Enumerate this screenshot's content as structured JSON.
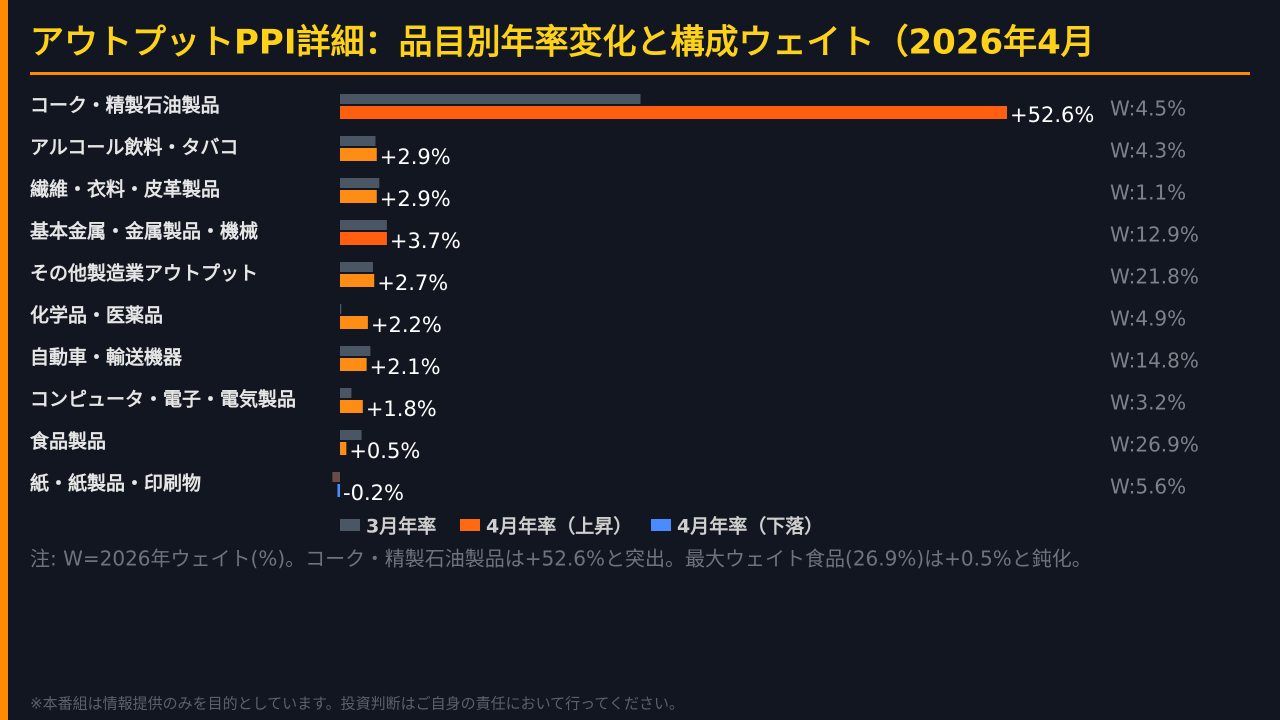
{
  "chart_data": {
    "type": "hbar",
    "title": "アウトプットPPI詳細：品目別年率変化と構成ウェイト（2026年4月",
    "categories": [
      "コーク・精製石油製品",
      "アルコール飲料・タバコ",
      "繊維・衣料・皮革製品",
      "基本金属・金属製品・機械",
      "その他製造業アウトプット",
      "化学品・医薬品",
      "自動車・輸送機器",
      "コンピュータ・電子・電気製品",
      "食品製品",
      "紙・紙製品・印刷物"
    ],
    "series": [
      {
        "name": "3月年率",
        "color": "#4a5663",
        "negative_color": "#6b4a48",
        "values": [
          23.7,
          2.8,
          3.1,
          3.7,
          2.6,
          0.1,
          2.4,
          0.9,
          1.7,
          -0.6
        ]
      },
      {
        "name": "4月年率（上昇）",
        "color": "#ff6a10",
        "colors": [
          "#ff5f0f",
          "#ff8c14",
          "#ff8c14",
          "#ff5f0f",
          "#ff8c14",
          "#ff8c14",
          "#ff8c14",
          "#ff8c14",
          "#ff8c14",
          null
        ],
        "values": [
          52.6,
          2.9,
          2.9,
          3.7,
          2.7,
          2.2,
          2.1,
          1.8,
          0.5,
          null
        ],
        "value_labels": [
          "+52.6%",
          "+2.9%",
          "+2.9%",
          "+3.7%",
          "+2.7%",
          "+2.2%",
          "+2.1%",
          "+1.8%",
          "+0.5%",
          null
        ]
      },
      {
        "name": "4月年率（下落）",
        "color": "#4a8cff",
        "values": [
          null,
          null,
          null,
          null,
          null,
          null,
          null,
          null,
          null,
          -0.2
        ],
        "value_labels": [
          null,
          null,
          null,
          null,
          null,
          null,
          null,
          null,
          null,
          "-0.2%"
        ]
      }
    ],
    "weight_labels": [
      "W:4.5%",
      "W:4.3%",
      "W:1.1%",
      "W:12.9%",
      "W:21.8%",
      "W:4.9%",
      "W:14.8%",
      "W:3.2%",
      "W:26.9%",
      "W:5.6%"
    ],
    "note": "注: W=2026年ウェイト(%)。コーク・精製石油製品は+52.6%と突出。最大ウェイト食品(26.9%)は+0.5%と鈍化。",
    "footer": "※本番組は情報提供のみを目的としています。投資判断はご自身の責任において行ってください。"
  }
}
